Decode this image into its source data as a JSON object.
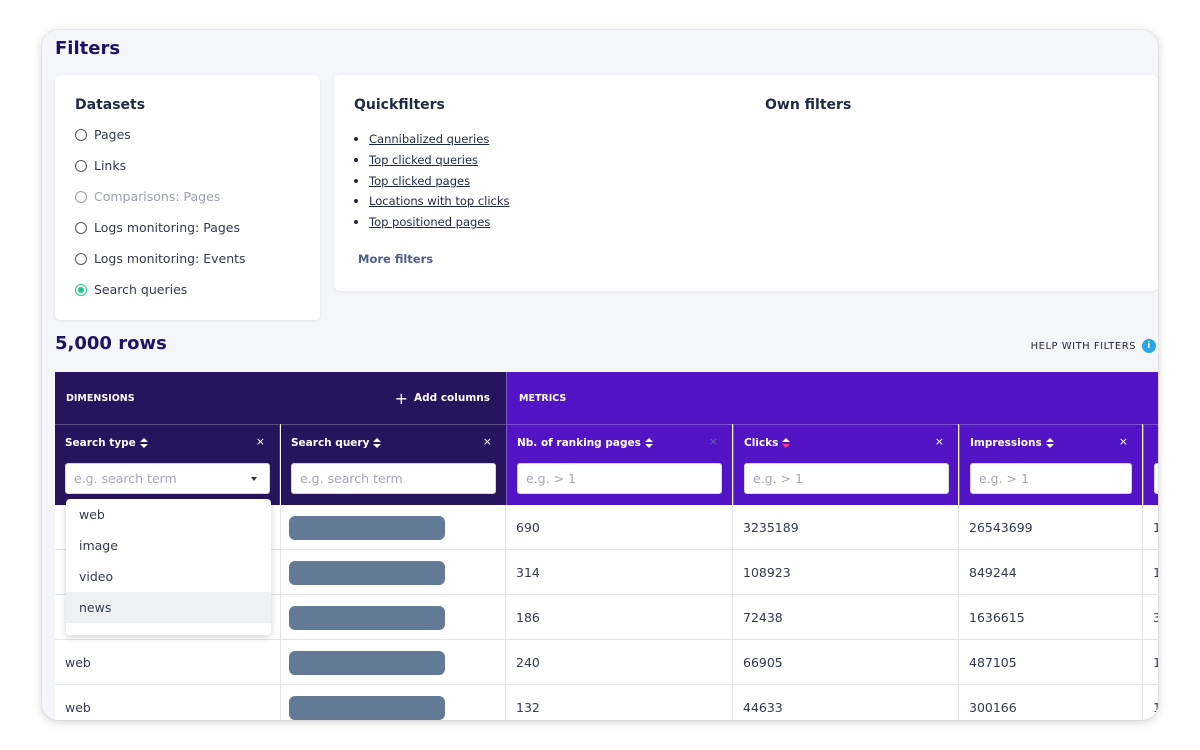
{
  "filters_title": "Filters",
  "datasets": {
    "heading": "Datasets",
    "options": [
      {
        "label": "Pages",
        "state": "default"
      },
      {
        "label": "Links",
        "state": "default"
      },
      {
        "label": "Comparisons: Pages",
        "state": "disabled"
      },
      {
        "label": "Logs monitoring: Pages",
        "state": "default"
      },
      {
        "label": "Logs monitoring: Events",
        "state": "default"
      },
      {
        "label": "Search queries",
        "state": "selected"
      }
    ]
  },
  "quickfilters": {
    "heading": "Quickfilters",
    "items": [
      "Cannibalized queries",
      "Top clicked queries",
      "Top clicked pages",
      "Locations with top clicks",
      "Top positioned pages"
    ],
    "more_label": "More filters"
  },
  "own_filters": {
    "heading": "Own filters"
  },
  "rows_count": "5,000 rows",
  "help_label": "HELP WITH FILTERS",
  "help_icon": "i",
  "table": {
    "dimensions_label": "DIMENSIONS",
    "add_columns_label": "Add columns",
    "metrics_label": "METRICS",
    "columns": [
      {
        "label": "Search type",
        "placeholder": "e.g. search term"
      },
      {
        "label": "Search query",
        "placeholder": "e.g. search term"
      },
      {
        "label": "Nb. of ranking pages",
        "placeholder": "e.g. > 1"
      },
      {
        "label": "Clicks",
        "placeholder": "e.g. > 1"
      },
      {
        "label": "Impressions",
        "placeholder": "e.g. > 1"
      }
    ],
    "rows": [
      {
        "type": "",
        "pages": "690",
        "clicks": "3235189",
        "impressions": "26543699",
        "extra": "1"
      },
      {
        "type": "",
        "pages": "314",
        "clicks": "108923",
        "impressions": "849244",
        "extra": "1"
      },
      {
        "type": "",
        "pages": "186",
        "clicks": "72438",
        "impressions": "1636615",
        "extra": "3"
      },
      {
        "type": "web",
        "pages": "240",
        "clicks": "66905",
        "impressions": "487105",
        "extra": "1"
      },
      {
        "type": "web",
        "pages": "132",
        "clicks": "44633",
        "impressions": "300166",
        "extra": "1"
      }
    ]
  },
  "dropdown": {
    "options": [
      "web",
      "image",
      "video",
      "news"
    ],
    "hovered": "news"
  },
  "colors": {
    "dimensions_bg": "#26145f",
    "metrics_bg": "#5214c4",
    "title": "#1e1166",
    "selected_radio": "#1fc98a",
    "info_icon": "#2aa6e6",
    "redacted_bar": "#627a96"
  }
}
